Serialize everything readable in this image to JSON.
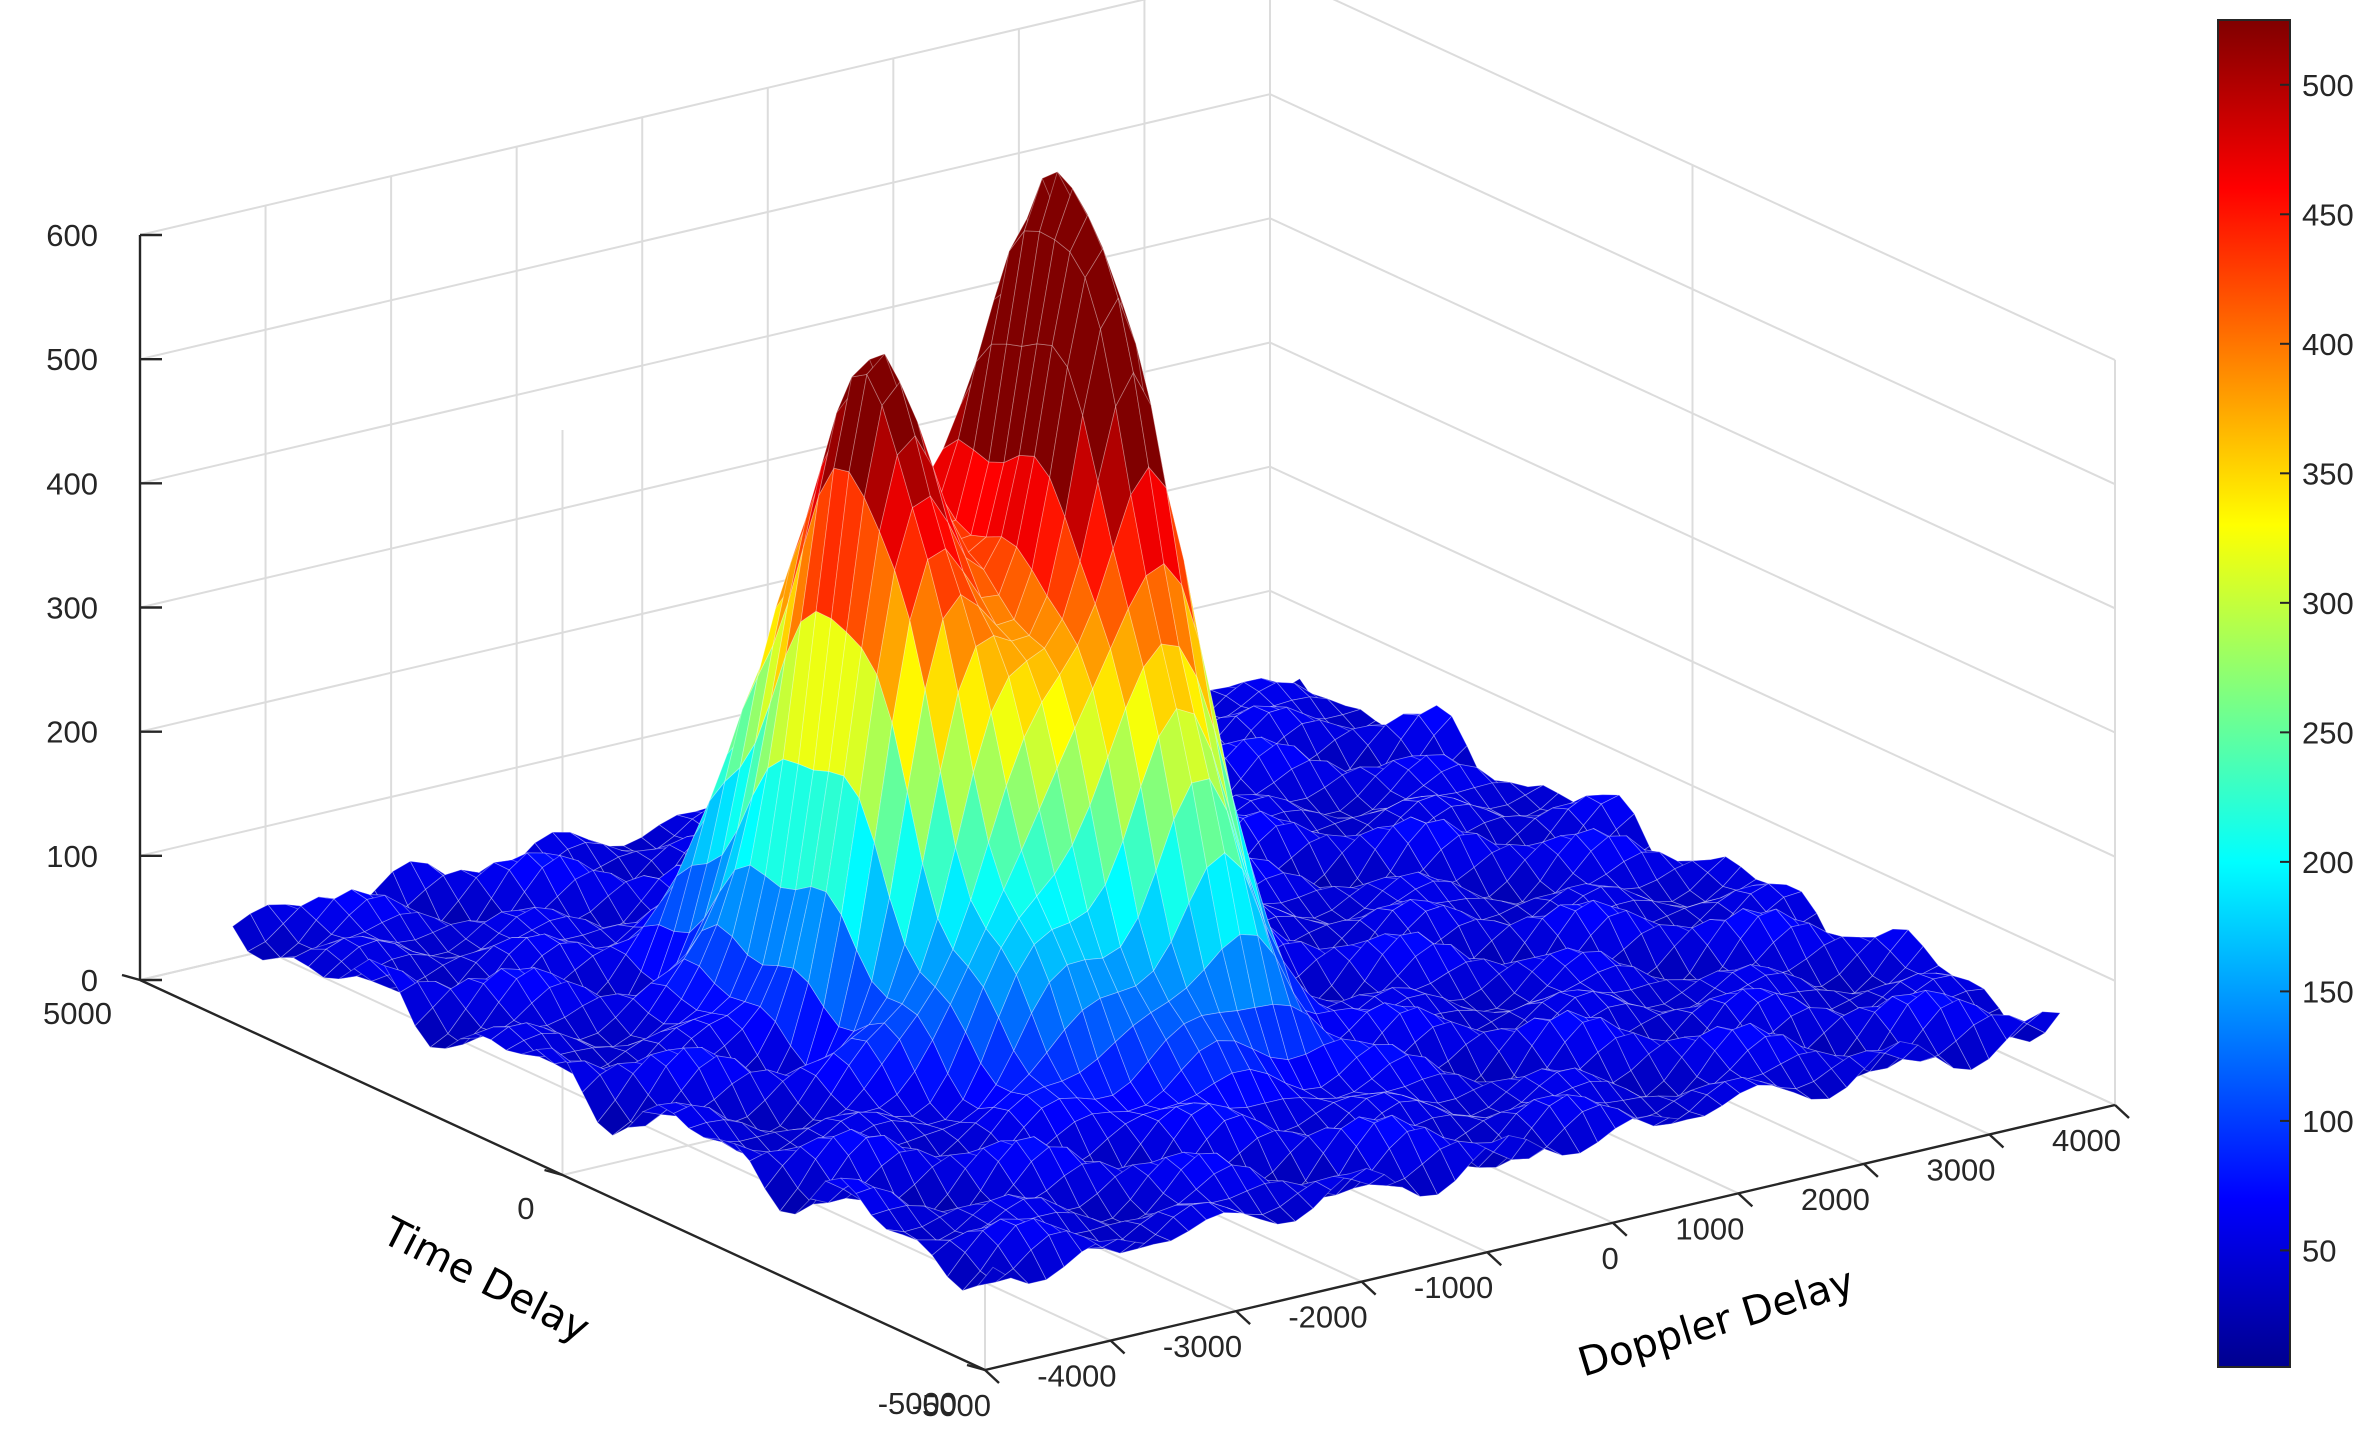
{
  "chart_data": {
    "type": "surface",
    "title": "",
    "xlabel": "Doppler Delay",
    "ylabel": "Time Delay",
    "zlabel": "",
    "xlim": [
      -5000,
      4000
    ],
    "ylim": [
      -5000,
      5000
    ],
    "zlim": [
      0,
      600
    ],
    "x_ticks": [
      -5000,
      -4000,
      -3000,
      -2000,
      -1000,
      0,
      1000,
      2000,
      3000,
      4000
    ],
    "y_ticks": [
      -5000,
      0,
      5000
    ],
    "z_ticks": [
      0,
      100,
      200,
      300,
      400,
      500,
      600
    ],
    "grid": true,
    "colormap": "jet",
    "colorbar": {
      "position": "right",
      "range": [
        5,
        525
      ],
      "ticks": [
        50,
        100,
        150,
        200,
        250,
        300,
        350,
        400,
        450,
        500
      ]
    },
    "surface_peaks": [
      {
        "doppler": -2300,
        "time": 400,
        "value": 470
      },
      {
        "doppler": -1000,
        "time": -200,
        "value": 525
      },
      {
        "doppler": -1400,
        "time": 900,
        "value": 300
      },
      {
        "doppler": -1500,
        "time": -1000,
        "value": 270
      }
    ],
    "background_level": 50
  }
}
